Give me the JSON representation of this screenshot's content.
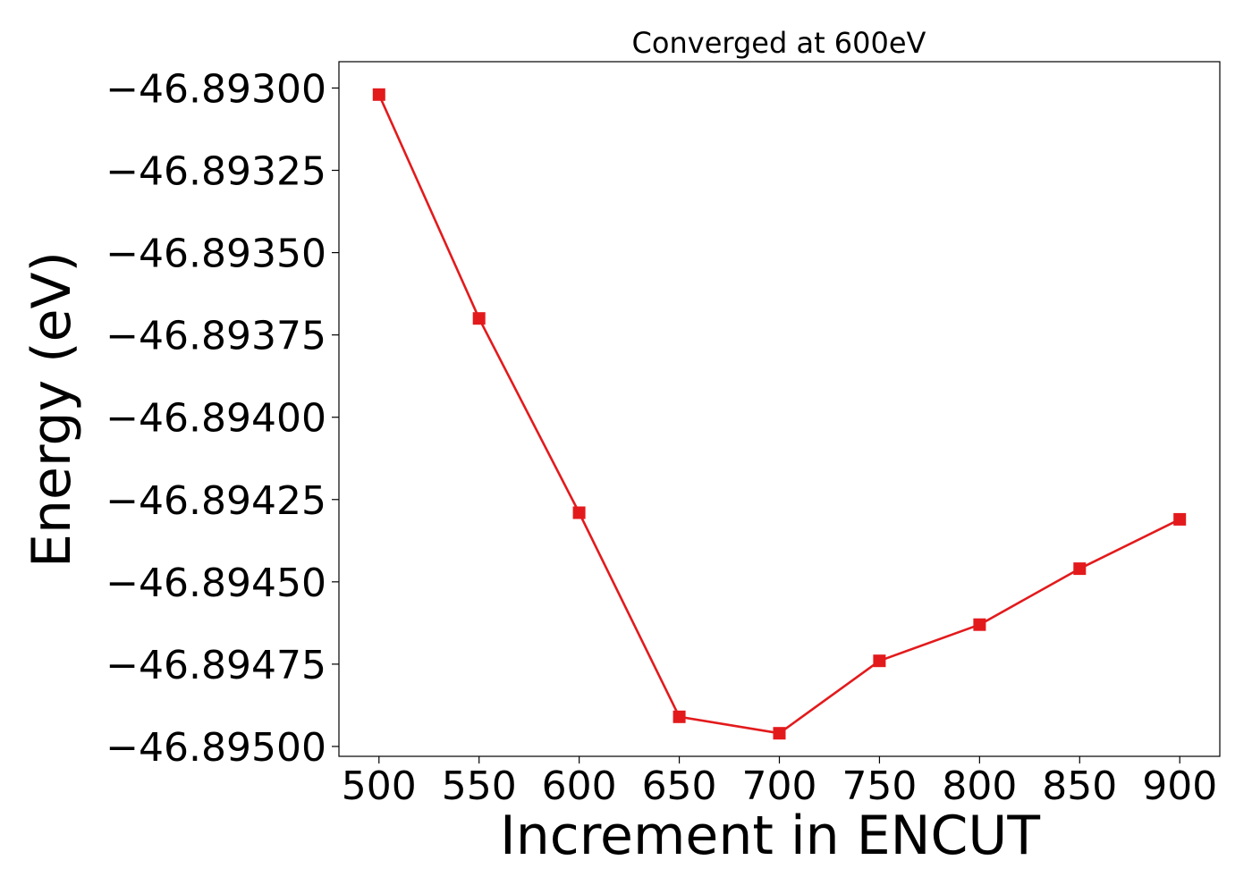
{
  "chart_data": {
    "type": "line",
    "title": "Converged at 600eV",
    "xlabel": "Increment in ENCUT",
    "ylabel": "Energy (eV)",
    "x": [
      500,
      550,
      600,
      650,
      700,
      750,
      800,
      850,
      900
    ],
    "xticks": [
      500,
      550,
      600,
      650,
      700,
      750,
      800,
      850,
      900
    ],
    "xtick_labels": [
      "500",
      "550",
      "600",
      "650",
      "700",
      "750",
      "800",
      "850",
      "900"
    ],
    "yticks": [
      -46.893,
      -46.89325,
      -46.8935,
      -46.89375,
      -46.894,
      -46.89425,
      -46.8945,
      -46.89475,
      -46.895
    ],
    "ytick_labels": [
      "−46.89300",
      "−46.89325",
      "−46.89350",
      "−46.89375",
      "−46.89400",
      "−46.89425",
      "−46.89450",
      "−46.89475",
      "−46.89500"
    ],
    "xlim": [
      480,
      920
    ],
    "ylim": [
      -46.89503,
      -46.89292
    ],
    "grid": false,
    "series": [
      {
        "values": [
          -46.89302,
          -46.8937,
          -46.89429,
          -46.89491,
          -46.89496,
          -46.89474,
          -46.89463,
          -46.89446,
          -46.89431
        ],
        "color": "#e31a1c",
        "marker": "square"
      }
    ]
  }
}
